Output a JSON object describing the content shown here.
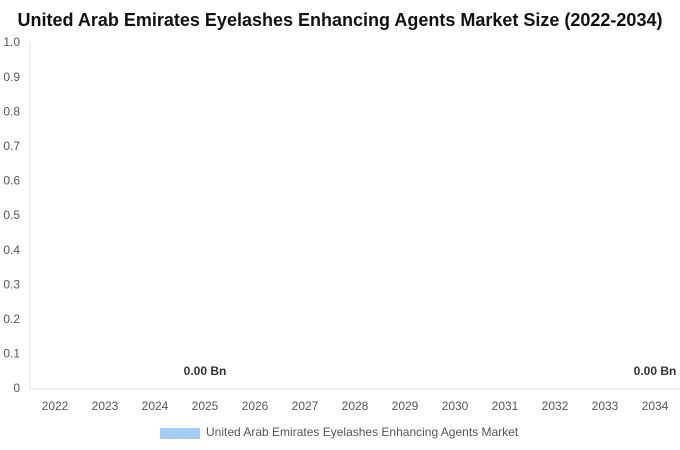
{
  "chart_data": {
    "type": "bar",
    "title": "United Arab Emirates Eyelashes Enhancing Agents Market Size (2022-2034)",
    "categories": [
      "2022",
      "2023",
      "2024",
      "2025",
      "2026",
      "2027",
      "2028",
      "2029",
      "2030",
      "2031",
      "2032",
      "2033",
      "2034"
    ],
    "series": [
      {
        "name": "United Arab Emirates Eyelashes Enhancing Agents Market",
        "color": "#a3cdf5",
        "values": [
          0,
          0,
          0,
          0,
          0,
          0,
          0,
          0,
          0,
          0,
          0,
          0,
          0
        ],
        "value_labels": [
          null,
          null,
          null,
          "0.00 Bn",
          null,
          null,
          null,
          null,
          null,
          null,
          null,
          null,
          "0.00 Bn"
        ]
      }
    ],
    "ylim": [
      0,
      1
    ],
    "yticks": [
      0,
      0.1,
      0.2,
      0.3,
      0.4,
      0.5,
      0.6,
      0.7,
      0.8,
      0.9,
      {
        "value": 1,
        "label": "1.0"
      }
    ],
    "grid": false,
    "legend": "bottom"
  }
}
